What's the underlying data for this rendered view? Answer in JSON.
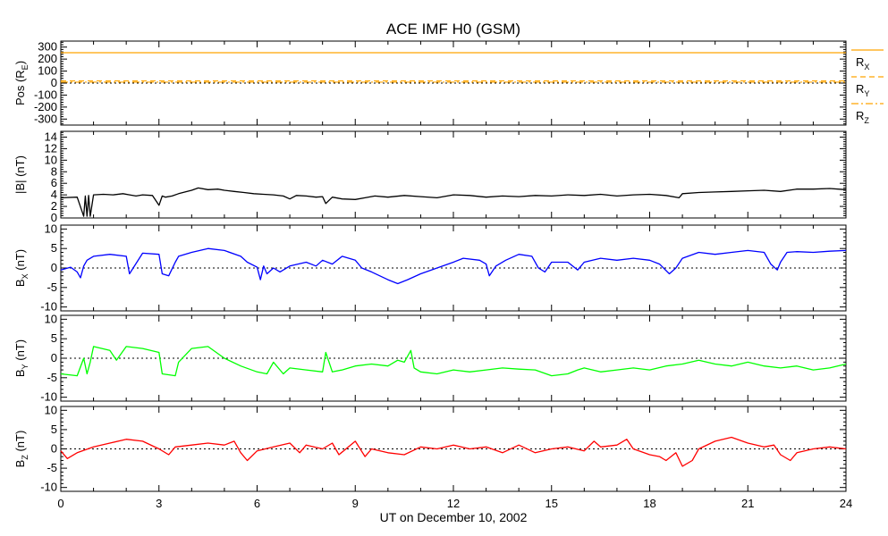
{
  "chart_data": [
    {
      "type": "line",
      "title": "ACE IMF H0 (GSM)",
      "ylabel": "Pos (R",
      "ylabel_sub": "E",
      "ylabel_end": ")",
      "ylim": [
        -350,
        350
      ],
      "yticks": [
        300,
        200,
        100,
        0,
        -100,
        -200,
        -300
      ],
      "xlim": [
        0,
        24
      ],
      "zero_line": true,
      "series": [
        {
          "name": "R",
          "sub": "X",
          "color": "#ffa500",
          "style": "solid",
          "constant": 253
        },
        {
          "name": "R",
          "sub": "Y",
          "color": "#ffa500",
          "style": "dashed",
          "constant": 18
        },
        {
          "name": "R",
          "sub": "Z",
          "color": "#ffa500",
          "style": "dashdot",
          "constant": 8
        }
      ]
    },
    {
      "type": "line",
      "ylabel": "|B| (nT)",
      "ylim": [
        0,
        15
      ],
      "yticks": [
        0,
        2,
        4,
        6,
        8,
        10,
        12,
        14
      ],
      "xlim": [
        0,
        24
      ],
      "zero_line": false,
      "series": [
        {
          "color": "#000000",
          "x": [
            0,
            0.5,
            0.7,
            0.75,
            0.8,
            0.85,
            0.9,
            1.0,
            1.3,
            1.6,
            1.9,
            2.1,
            2.3,
            2.5,
            2.8,
            3.0,
            3.1,
            3.2,
            3.4,
            3.6,
            3.8,
            4.0,
            4.2,
            4.5,
            4.8,
            5.0,
            5.3,
            5.6,
            5.9,
            6.2,
            6.5,
            6.8,
            7.0,
            7.2,
            7.5,
            7.8,
            8.0,
            8.1,
            8.3,
            8.6,
            9.0,
            9.3,
            9.6,
            10.0,
            10.5,
            11.0,
            11.5,
            12.0,
            12.5,
            13.0,
            13.5,
            14.0,
            14.5,
            15.0,
            15.5,
            16.0,
            16.5,
            17.0,
            17.5,
            18.0,
            18.5,
            18.9,
            19.0,
            19.5,
            20.0,
            20.5,
            21.0,
            21.5,
            22.0,
            22.5,
            23.0,
            23.5,
            24.0
          ],
          "y": [
            3.5,
            3.6,
            0.3,
            3.8,
            0.3,
            3.9,
            0.3,
            4.0,
            4.1,
            4.0,
            4.2,
            4.0,
            3.8,
            4.0,
            3.9,
            2.2,
            3.8,
            3.6,
            3.8,
            4.2,
            4.5,
            4.8,
            5.2,
            4.9,
            5.0,
            4.8,
            4.6,
            4.4,
            4.2,
            4.1,
            4.0,
            3.8,
            3.3,
            3.9,
            3.8,
            3.6,
            3.7,
            2.5,
            3.6,
            3.3,
            3.2,
            3.5,
            3.8,
            3.6,
            3.9,
            3.7,
            3.5,
            4.0,
            3.9,
            3.6,
            3.8,
            3.7,
            3.9,
            3.8,
            4.0,
            3.9,
            4.1,
            3.8,
            4.0,
            4.1,
            3.9,
            3.5,
            4.2,
            4.4,
            4.5,
            4.6,
            4.7,
            4.8,
            4.6,
            5.0,
            5.0,
            5.1,
            4.9
          ]
        }
      ]
    },
    {
      "type": "line",
      "ylabel": "B",
      "ylabel_sub": "X",
      "ylabel_end": " (nT)",
      "ylim": [
        -11,
        11
      ],
      "yticks": [
        10,
        5,
        0,
        -5,
        -10
      ],
      "xlim": [
        0,
        24
      ],
      "zero_line": true,
      "series": [
        {
          "color": "#0000ff",
          "x": [
            0,
            0.3,
            0.5,
            0.6,
            0.7,
            0.8,
            1.0,
            1.5,
            2.0,
            2.1,
            2.5,
            3.0,
            3.1,
            3.3,
            3.5,
            3.6,
            4.0,
            4.5,
            5.0,
            5.5,
            5.7,
            6.0,
            6.1,
            6.2,
            6.3,
            6.5,
            6.7,
            7.0,
            7.5,
            7.8,
            8.0,
            8.3,
            8.6,
            9.0,
            9.2,
            9.5,
            10.0,
            10.3,
            10.6,
            11.0,
            11.5,
            12.0,
            12.3,
            12.8,
            13.0,
            13.1,
            13.3,
            13.6,
            14.0,
            14.4,
            14.6,
            14.8,
            15.0,
            15.5,
            15.8,
            16.0,
            16.5,
            17.0,
            17.5,
            18.0,
            18.3,
            18.6,
            18.8,
            19.0,
            19.5,
            20.0,
            20.5,
            21.0,
            21.5,
            21.7,
            21.9,
            22.0,
            22.2,
            22.5,
            23.0,
            23.5,
            24.0
          ],
          "y": [
            -0.5,
            0.2,
            -1.0,
            -2.5,
            0.5,
            2.0,
            3.0,
            3.5,
            3.0,
            -1.5,
            3.8,
            3.5,
            -1.5,
            -2.0,
            1.5,
            3.0,
            4.0,
            5.0,
            4.5,
            3.0,
            1.5,
            0.2,
            -3.0,
            0.5,
            -1.5,
            0.0,
            -1.0,
            0.5,
            1.5,
            0.5,
            2.0,
            1.0,
            3.0,
            2.0,
            0.0,
            -1.0,
            -3.0,
            -4.0,
            -3.0,
            -1.5,
            0.0,
            1.5,
            2.5,
            2.0,
            1.0,
            -2.0,
            0.5,
            2.0,
            3.5,
            3.0,
            0.0,
            -1.0,
            1.5,
            1.5,
            -0.5,
            1.5,
            2.5,
            2.0,
            2.5,
            2.0,
            1.0,
            -1.5,
            0.0,
            2.5,
            4.0,
            3.5,
            4.0,
            4.5,
            4.0,
            1.0,
            -0.5,
            1.5,
            4.0,
            4.2,
            4.0,
            4.3,
            4.5
          ]
        }
      ]
    },
    {
      "type": "line",
      "ylabel": "B",
      "ylabel_sub": "Y",
      "ylabel_end": " (nT)",
      "ylim": [
        -11,
        11
      ],
      "yticks": [
        10,
        5,
        0,
        -5,
        -10
      ],
      "xlim": [
        0,
        24
      ],
      "zero_line": true,
      "series": [
        {
          "color": "#00ff00",
          "x": [
            0,
            0.5,
            0.7,
            0.8,
            0.9,
            1.0,
            1.5,
            1.7,
            2.0,
            2.5,
            3.0,
            3.1,
            3.5,
            3.6,
            4.0,
            4.5,
            5.0,
            5.5,
            6.0,
            6.3,
            6.5,
            6.8,
            7.0,
            7.5,
            8.0,
            8.1,
            8.3,
            8.6,
            9.0,
            9.5,
            10.0,
            10.3,
            10.5,
            10.7,
            10.8,
            11.0,
            11.5,
            12.0,
            12.5,
            13.0,
            13.5,
            14.0,
            14.5,
            15.0,
            15.5,
            15.8,
            16.0,
            16.5,
            17.0,
            17.5,
            18.0,
            18.5,
            19.0,
            19.5,
            20.0,
            20.5,
            21.0,
            21.5,
            22.0,
            22.5,
            23.0,
            23.5,
            24.0
          ],
          "y": [
            -4.0,
            -4.5,
            0.0,
            -4.0,
            -1.0,
            3.0,
            2.0,
            -0.5,
            3.0,
            2.5,
            1.5,
            -4.0,
            -4.5,
            -1.0,
            2.5,
            3.0,
            0.0,
            -2.0,
            -3.5,
            -4.0,
            -1.0,
            -4.0,
            -2.5,
            -3.0,
            -3.5,
            1.5,
            -3.5,
            -3.0,
            -2.0,
            -1.5,
            -2.0,
            -0.5,
            -1.0,
            2.0,
            -2.5,
            -3.5,
            -4.0,
            -3.0,
            -3.5,
            -3.0,
            -2.5,
            -2.8,
            -3.0,
            -4.5,
            -4.0,
            -3.0,
            -2.5,
            -3.5,
            -3.0,
            -2.5,
            -3.0,
            -2.0,
            -1.5,
            -0.5,
            -1.5,
            -2.0,
            -1.0,
            -2.0,
            -2.5,
            -2.0,
            -3.0,
            -2.5,
            -1.5
          ]
        }
      ]
    },
    {
      "type": "line",
      "ylabel": "B",
      "ylabel_sub": "Z",
      "ylabel_end": " (nT)",
      "ylim": [
        -11,
        11
      ],
      "yticks": [
        10,
        5,
        0,
        -5,
        -10
      ],
      "xlim": [
        0,
        24
      ],
      "zero_line": true,
      "series": [
        {
          "color": "#ff0000",
          "x": [
            0,
            0.2,
            0.5,
            1.0,
            1.5,
            2.0,
            2.5,
            3.0,
            3.3,
            3.5,
            4.0,
            4.5,
            5.0,
            5.3,
            5.5,
            5.7,
            6.0,
            6.5,
            7.0,
            7.3,
            7.5,
            8.0,
            8.3,
            8.5,
            9.0,
            9.3,
            9.5,
            10.0,
            10.5,
            11.0,
            11.5,
            12.0,
            12.5,
            13.0,
            13.5,
            14.0,
            14.5,
            15.0,
            15.5,
            16.0,
            16.3,
            16.5,
            17.0,
            17.3,
            17.5,
            18.0,
            18.3,
            18.5,
            18.8,
            19.0,
            19.3,
            19.5,
            20.0,
            20.5,
            21.0,
            21.5,
            21.8,
            22.0,
            22.3,
            22.5,
            23.0,
            23.5,
            24.0
          ],
          "y": [
            -0.5,
            -2.5,
            -1.0,
            0.5,
            1.5,
            2.5,
            2.0,
            0.0,
            -1.5,
            0.5,
            1.0,
            1.5,
            1.0,
            2.0,
            -1.0,
            -3.0,
            -0.5,
            0.5,
            1.5,
            -1.0,
            1.0,
            0.0,
            1.5,
            -1.5,
            2.0,
            -2.0,
            0.0,
            -1.0,
            -1.5,
            0.5,
            0.0,
            1.0,
            0.0,
            0.5,
            -1.0,
            1.0,
            -1.0,
            0.0,
            0.5,
            -0.5,
            2.0,
            0.5,
            1.0,
            2.5,
            0.0,
            -1.5,
            -2.0,
            -3.0,
            -1.0,
            -4.5,
            -3.0,
            0.0,
            2.0,
            3.0,
            1.5,
            0.5,
            1.0,
            -1.5,
            -3.0,
            -1.0,
            0.0,
            0.5,
            0.0
          ]
        }
      ]
    }
  ],
  "x_axis": {
    "label": "UT on December 10, 2002",
    "ticks": [
      0,
      3,
      6,
      9,
      12,
      15,
      18,
      21,
      24
    ],
    "minor_step": 1
  }
}
